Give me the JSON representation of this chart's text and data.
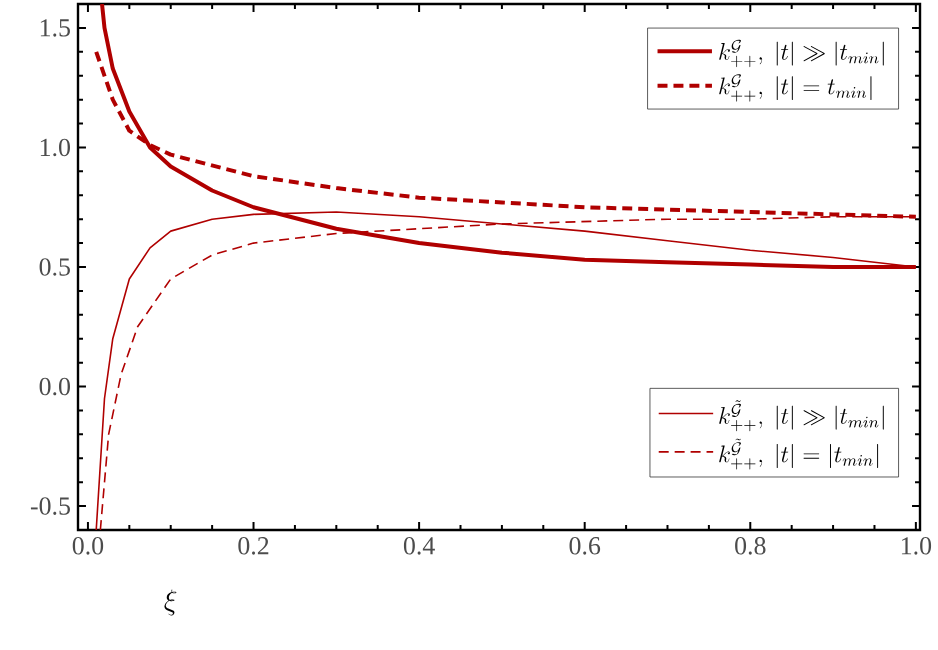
{
  "chart_data": {
    "type": "line",
    "xlabel": "\\xi",
    "xlim": [
      -0.012,
      1.005
    ],
    "ylim": [
      -0.6,
      1.6
    ],
    "xticks": [
      {
        "value": 0,
        "label": "0.0"
      },
      0.2,
      0.4,
      0.6,
      0.8,
      {
        "value": 1,
        "label": "1.0"
      }
    ],
    "yticks": [
      -0.5,
      {
        "value": 0,
        "label": "0.0"
      },
      0.5,
      {
        "value": 1,
        "label": "1.0"
      },
      1.5
    ],
    "legend": "right",
    "grid": false,
    "marker": "none",
    "series": [
      {
        "name": "k^{\\mathcal{G}}_{++},\\ |t|\\gg|t_{min}|",
        "color": "#b00000",
        "line_style": "solid",
        "x": [
          0.017,
          0.02,
          0.03,
          0.05,
          0.075,
          0.1,
          0.15,
          0.2,
          0.3,
          0.4,
          0.5,
          0.6,
          0.7,
          0.8,
          0.9,
          1.0
        ],
        "values": [
          1.6,
          1.5,
          1.33,
          1.15,
          1.0,
          0.92,
          0.82,
          0.75,
          0.66,
          0.6,
          0.56,
          0.53,
          0.52,
          0.51,
          0.5,
          0.5
        ]
      },
      {
        "name": "k^{\\mathcal{G}}_{++},\\ |t|=t_{min}|",
        "color": "#b00000",
        "line_style": "dashed",
        "x": [
          0.01,
          0.03,
          0.05,
          0.075,
          0.1,
          0.2,
          0.3,
          0.4,
          0.5,
          0.6,
          0.7,
          0.8,
          0.9,
          1.0
        ],
        "values": [
          1.4,
          1.2,
          1.07,
          1.01,
          0.97,
          0.88,
          0.83,
          0.79,
          0.77,
          0.75,
          0.74,
          0.73,
          0.72,
          0.71
        ]
      },
      {
        "name": "k^{\\tilde{\\mathcal{G}}}_{++},\\ |t|\\gg|t_{min}|",
        "color": "#b00000",
        "line_style": "solid",
        "x": [
          0.01,
          0.02,
          0.03,
          0.05,
          0.075,
          0.1,
          0.15,
          0.2,
          0.3,
          0.4,
          0.5,
          0.6,
          0.7,
          0.8,
          0.9,
          1.0
        ],
        "values": [
          -0.6,
          -0.05,
          0.2,
          0.45,
          0.58,
          0.65,
          0.7,
          0.72,
          0.73,
          0.71,
          0.68,
          0.65,
          0.61,
          0.57,
          0.54,
          0.5
        ]
      },
      {
        "name": "k^{\\tilde{\\mathcal{G}}}_{++},\\ |t|=|t_{min}|",
        "color": "#b00000",
        "line_style": "dashed",
        "x": [
          0.015,
          0.025,
          0.04,
          0.06,
          0.1,
          0.15,
          0.2,
          0.3,
          0.4,
          0.5,
          0.6,
          0.7,
          0.8,
          0.9,
          1.0
        ],
        "values": [
          -0.6,
          -0.2,
          0.05,
          0.25,
          0.45,
          0.55,
          0.6,
          0.64,
          0.66,
          0.68,
          0.69,
          0.7,
          0.7,
          0.71,
          0.71
        ]
      }
    ]
  }
}
